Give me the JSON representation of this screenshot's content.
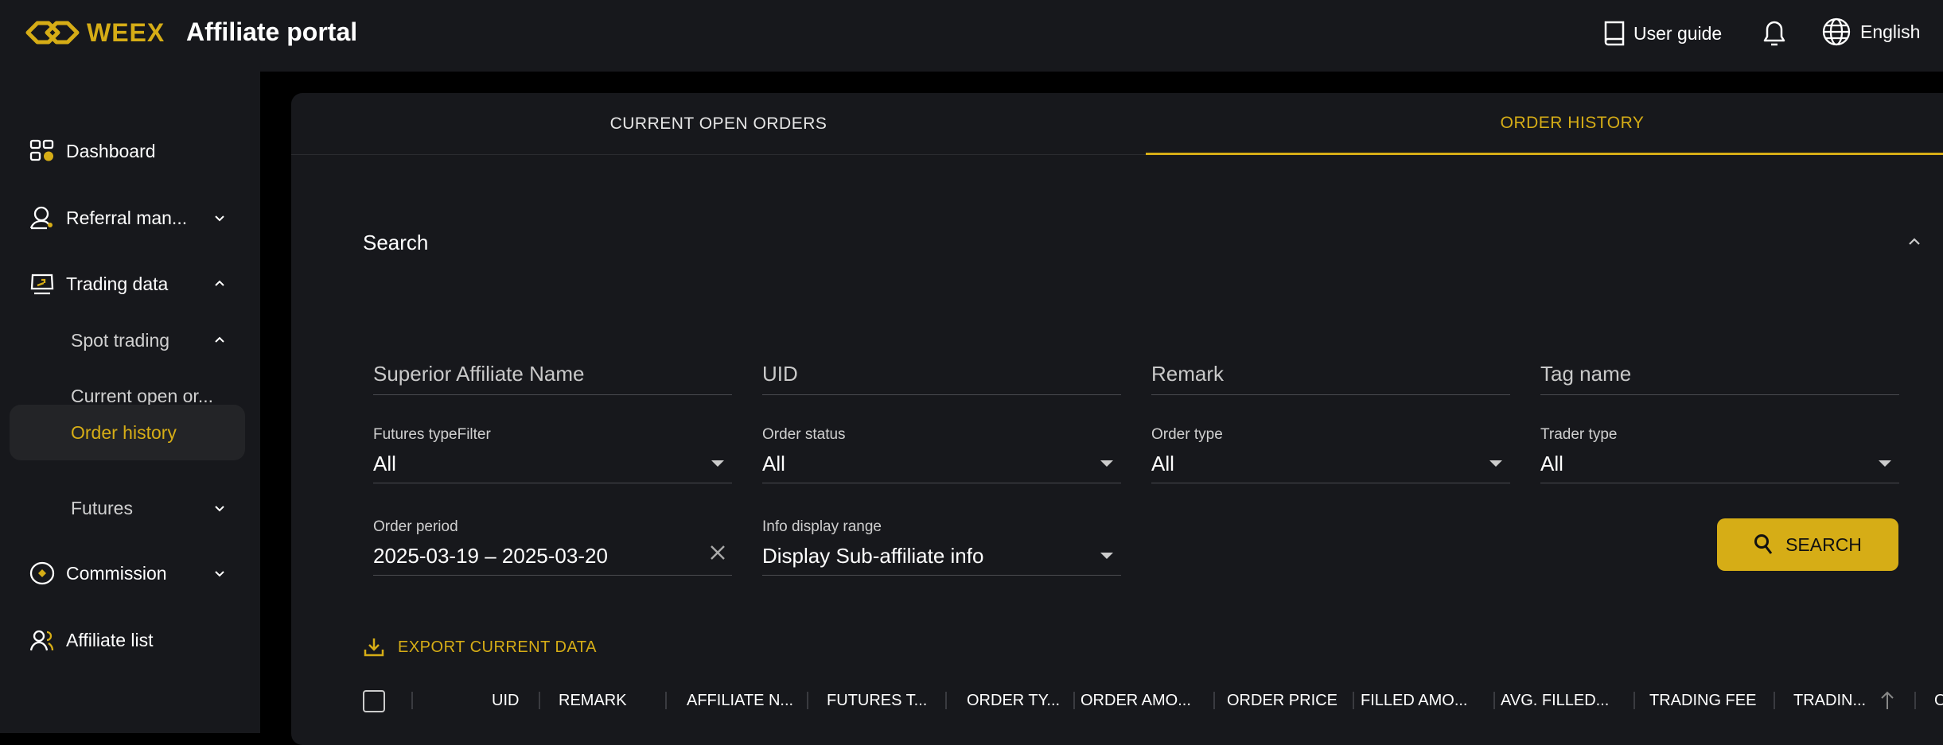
{
  "header": {
    "brand": "WEEX",
    "title": "Affiliate portal",
    "user_guide": "User guide",
    "language": "English"
  },
  "colors": {
    "accent": "#d6ad16",
    "background": "#17181c"
  },
  "sidebar": {
    "items": [
      {
        "label": "Dashboard",
        "icon": "dashboard-icon"
      },
      {
        "label": "Referral man...",
        "icon": "referral-icon"
      },
      {
        "label": "Trading data",
        "icon": "trading-data-icon"
      },
      {
        "label": "Spot trading"
      },
      {
        "label": "Current open or..."
      },
      {
        "label": "Order history",
        "active": true
      },
      {
        "label": "Futures"
      },
      {
        "label": "Commission",
        "icon": "commission-icon"
      },
      {
        "label": "Affiliate list",
        "icon": "affiliate-list-icon"
      }
    ]
  },
  "tabs": [
    {
      "label": "CURRENT OPEN ORDERS"
    },
    {
      "label": "ORDER HISTORY",
      "active": true
    }
  ],
  "search": {
    "title": "Search",
    "inputs": [
      {
        "placeholder": "Superior Affiliate Name"
      },
      {
        "placeholder": "UID"
      },
      {
        "placeholder": "Remark"
      },
      {
        "placeholder": "Tag name"
      }
    ],
    "selects": [
      {
        "label": "Futures typeFilter",
        "value": "All"
      },
      {
        "label": "Order status",
        "value": "All"
      },
      {
        "label": "Order type",
        "value": "All"
      },
      {
        "label": "Trader type",
        "value": "All"
      }
    ],
    "order_period": {
      "label": "Order period",
      "value": "2025-03-19 – 2025-03-20"
    },
    "display_range": {
      "label": "Info display range",
      "value": "Display Sub-affiliate info"
    },
    "button": "SEARCH"
  },
  "export_label": "EXPORT CURRENT DATA",
  "table": {
    "columns": [
      "UID",
      "REMARK",
      "AFFILIATE N...",
      "FUTURES T...",
      "ORDER TY...",
      "ORDER AMO...",
      "ORDER PRICE",
      "FILLED AMO...",
      "AVG. FILLED...",
      "TRADING FEE",
      "TRADIN...",
      "O"
    ]
  }
}
